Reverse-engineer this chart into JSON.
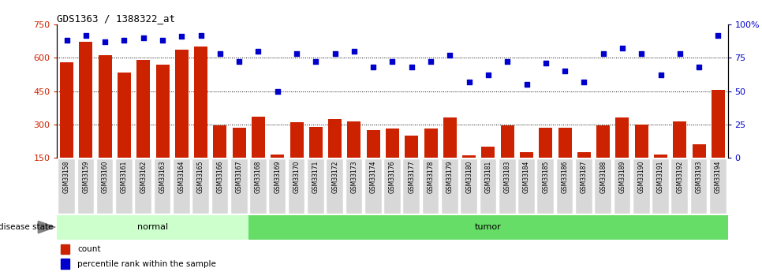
{
  "title": "GDS1363 / 1388322_at",
  "samples": [
    "GSM33158",
    "GSM33159",
    "GSM33160",
    "GSM33161",
    "GSM33162",
    "GSM33163",
    "GSM33164",
    "GSM33165",
    "GSM33166",
    "GSM33167",
    "GSM33168",
    "GSM33169",
    "GSM33170",
    "GSM33171",
    "GSM33172",
    "GSM33173",
    "GSM33174",
    "GSM33176",
    "GSM33177",
    "GSM33178",
    "GSM33179",
    "GSM33180",
    "GSM33181",
    "GSM33183",
    "GSM33184",
    "GSM33185",
    "GSM33186",
    "GSM33187",
    "GSM33188",
    "GSM33189",
    "GSM33190",
    "GSM33191",
    "GSM33192",
    "GSM33193",
    "GSM33194"
  ],
  "counts": [
    580,
    672,
    610,
    535,
    590,
    570,
    635,
    650,
    295,
    285,
    335,
    165,
    310,
    290,
    325,
    315,
    275,
    280,
    250,
    280,
    330,
    160,
    200,
    295,
    175,
    285,
    285,
    175,
    295,
    330,
    300,
    165,
    315,
    210,
    455
  ],
  "percentiles": [
    88,
    92,
    87,
    88,
    90,
    88,
    91,
    92,
    78,
    72,
    80,
    50,
    78,
    72,
    78,
    80,
    68,
    72,
    68,
    72,
    77,
    57,
    62,
    72,
    55,
    71,
    65,
    57,
    78,
    82,
    78,
    62,
    78,
    68,
    92
  ],
  "group": [
    "normal",
    "normal",
    "normal",
    "normal",
    "normal",
    "normal",
    "normal",
    "normal",
    "normal",
    "normal",
    "tumor",
    "tumor",
    "tumor",
    "tumor",
    "tumor",
    "tumor",
    "tumor",
    "tumor",
    "tumor",
    "tumor",
    "tumor",
    "tumor",
    "tumor",
    "tumor",
    "tumor",
    "tumor",
    "tumor",
    "tumor",
    "tumor",
    "tumor",
    "tumor",
    "tumor",
    "tumor",
    "tumor",
    "tumor"
  ],
  "bar_color": "#cc2200",
  "dot_color": "#0000cc",
  "normal_color": "#ccffcc",
  "tumor_color": "#66dd66",
  "ylim_left": [
    150,
    750
  ],
  "ylim_right": [
    0,
    100
  ],
  "yticks_left": [
    150,
    300,
    450,
    600,
    750
  ],
  "yticks_right": [
    0,
    25,
    50,
    75,
    100
  ],
  "ytick_labels_right": [
    "0",
    "25",
    "50",
    "75",
    "100%"
  ],
  "bar_bottom": 150,
  "xtick_bg": "#d8d8d8"
}
